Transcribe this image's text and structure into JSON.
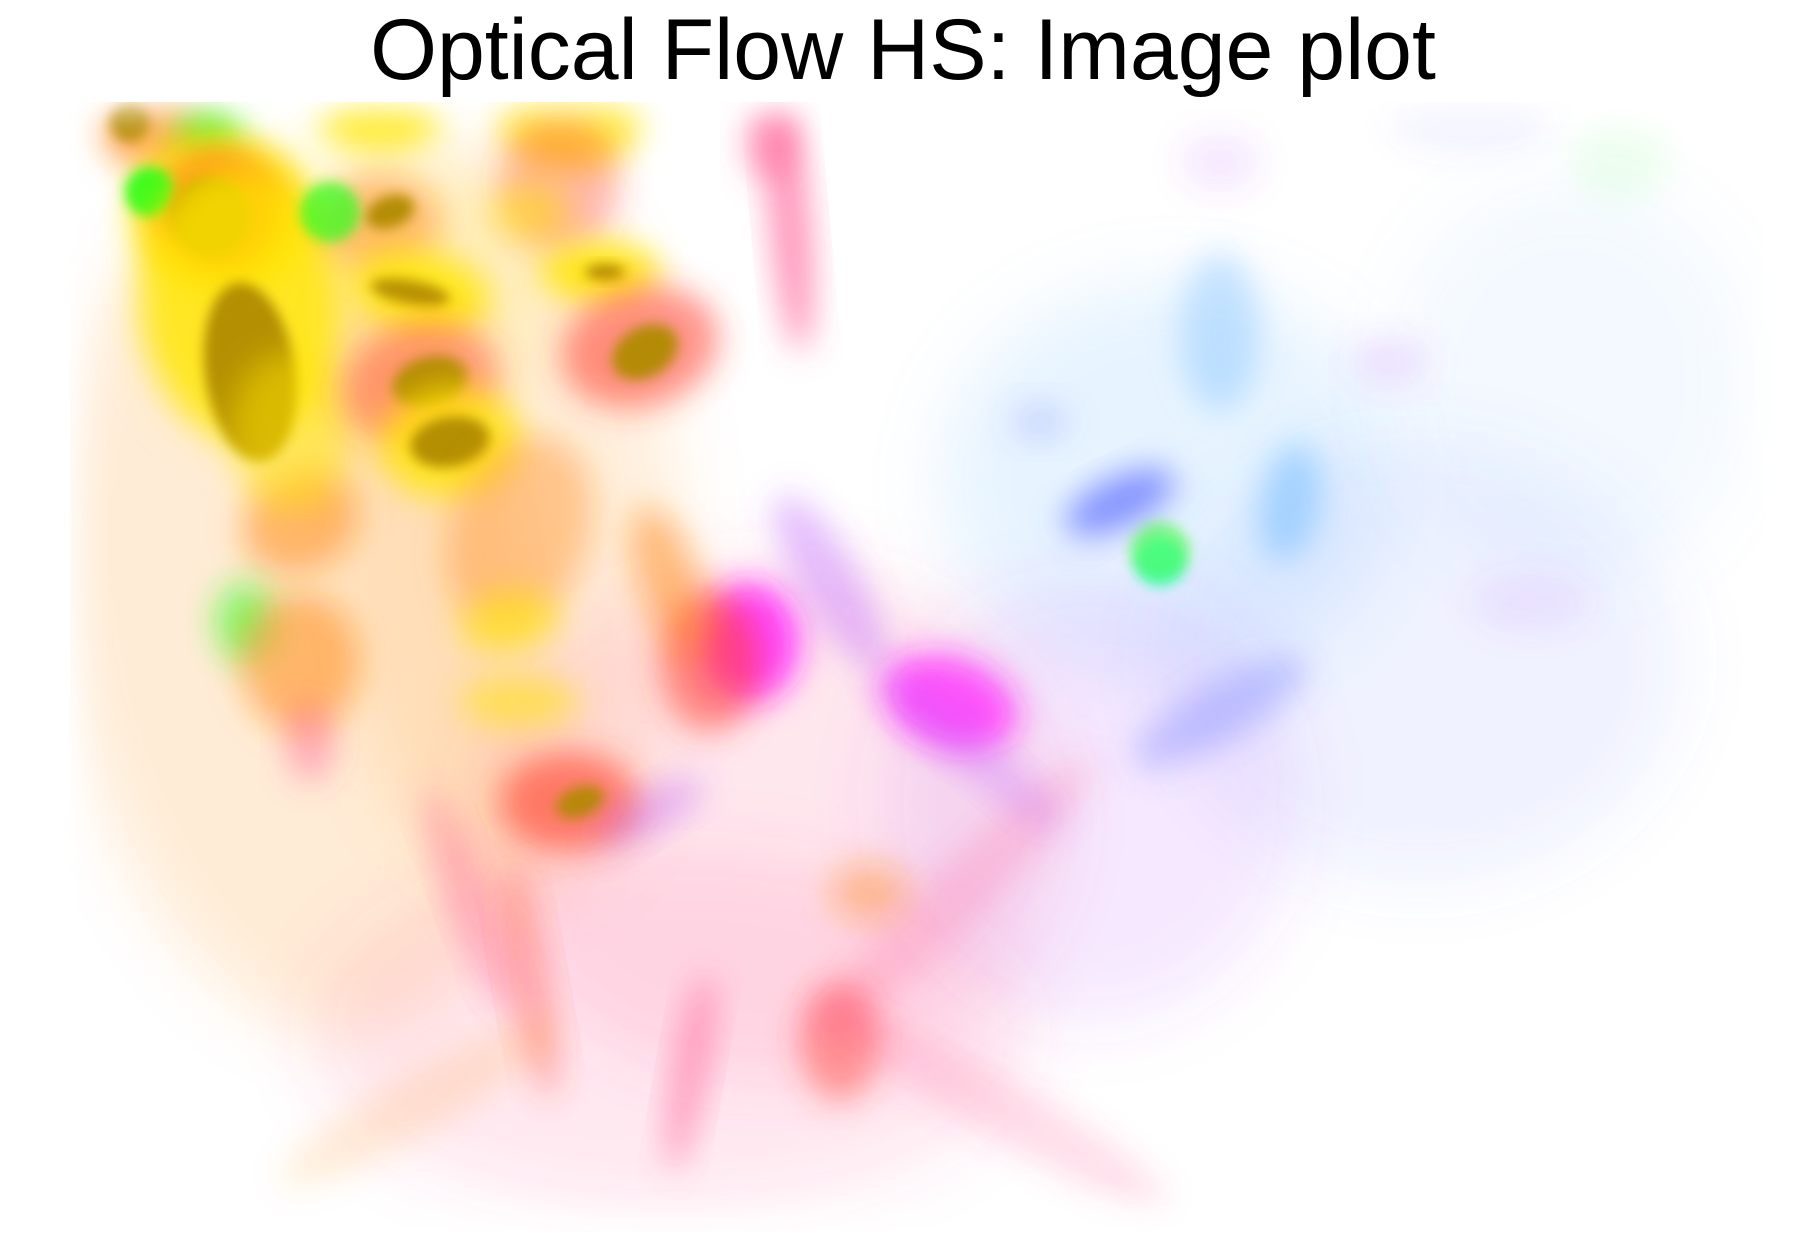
{
  "chart_data": {
    "type": "heatmap",
    "title": "Optical Flow HS: Image plot",
    "colors": {
      "red": "#ff3a2a",
      "orange": "#ff8a1a",
      "yellow": "#ffe600",
      "olive": "#b08a00",
      "green": "#2aff1a",
      "pink": "#ff4d8a",
      "magenta": "#ff1aff",
      "violet": "#b84dff",
      "blue": "#5a6aff",
      "light-blue": "#6ab8ff",
      "cyan": "#1affd9"
    }
  }
}
